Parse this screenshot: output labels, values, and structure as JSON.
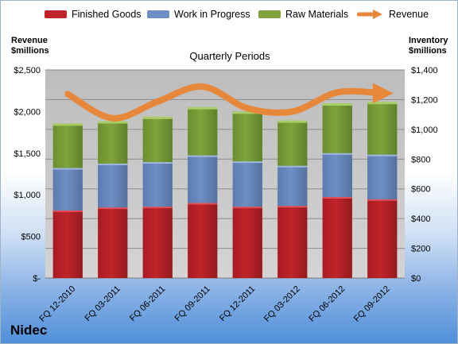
{
  "legend": {
    "finished": "Finished Goods",
    "wip": "Work in Progress",
    "raw": "Raw Materials",
    "revenue": "Revenue"
  },
  "left_axis_title": [
    "Revenue",
    "$millions"
  ],
  "right_axis_title": [
    "Inventory",
    "$millions"
  ],
  "subtitle": "Quarterly Periods",
  "company": "Nidec",
  "colors": {
    "finished": "#c0242a",
    "wip": "#6f8fc4",
    "raw": "#7ea33c",
    "revenue": "#e6873a",
    "plot_bg": "#c8c8c8"
  },
  "chart_data": {
    "type": "bar",
    "stacked": true,
    "categories": [
      "FQ 12-2010",
      "FQ 03-2011",
      "FQ 06-2011",
      "FQ 09-2011",
      "FQ 12-2011",
      "FQ 03-2012",
      "FQ 06-2012",
      "FQ 09-2012"
    ],
    "series": [
      {
        "name": "Finished Goods",
        "axis": "right",
        "values": [
          455,
          475,
          480,
          505,
          480,
          485,
          545,
          530
        ]
      },
      {
        "name": "Work in Progress",
        "axis": "right",
        "values": [
          285,
          295,
          300,
          320,
          305,
          270,
          295,
          300
        ]
      },
      {
        "name": "Raw Materials",
        "axis": "right",
        "values": [
          295,
          280,
          300,
          320,
          330,
          300,
          330,
          350
        ]
      },
      {
        "name": "Revenue",
        "type": "line",
        "axis": "left",
        "values": [
          2210,
          1920,
          2120,
          2300,
          2040,
          2000,
          2230,
          2220
        ]
      }
    ],
    "left_axis": {
      "ticks": [
        "$-",
        "$500",
        "$1,000",
        "$1,500",
        "$2,000",
        "$2,500"
      ],
      "range": [
        0,
        2500
      ]
    },
    "right_axis": {
      "ticks": [
        "$0",
        "$200",
        "$400",
        "$600",
        "$800",
        "$1,000",
        "$1,200",
        "$1,400"
      ],
      "range": [
        0,
        1400
      ]
    },
    "grid": true,
    "legend_position": "top"
  }
}
